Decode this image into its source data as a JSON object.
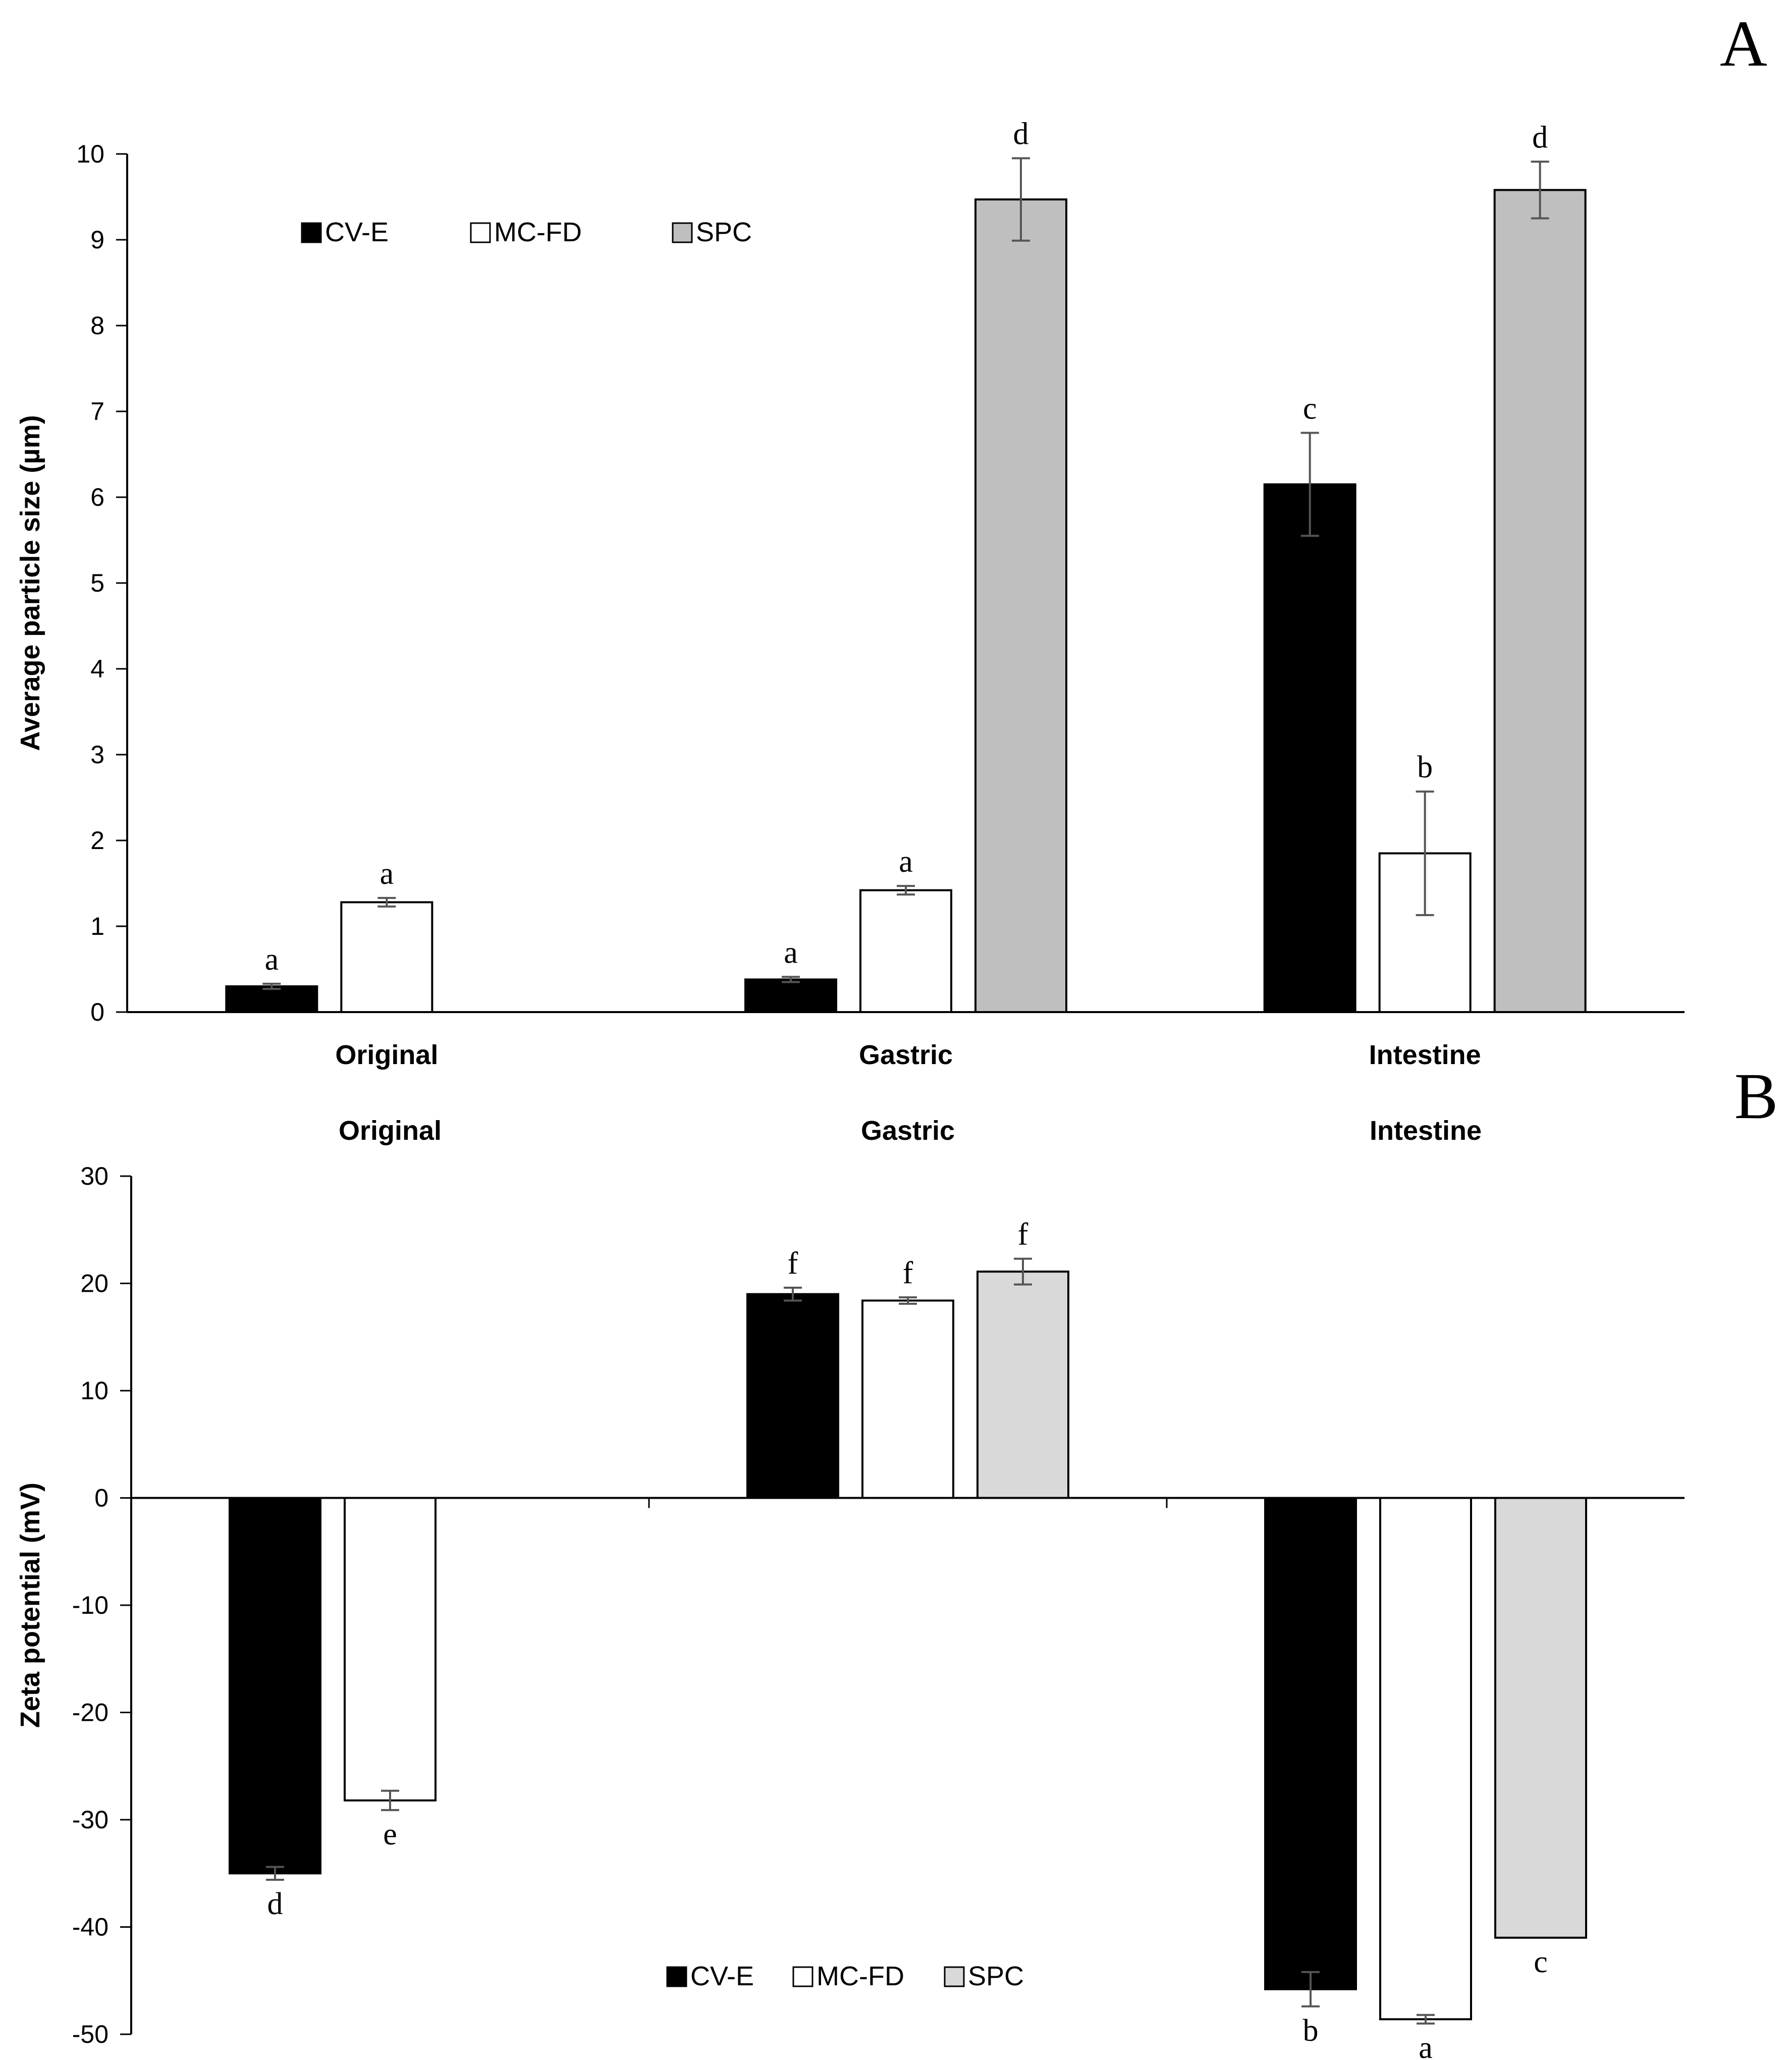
{
  "chart_data": [
    {
      "type": "bar",
      "panel_label": "A",
      "title": "",
      "xlabel": "",
      "ylabel": "Average particle size (µm)",
      "ylim": [
        0,
        10
      ],
      "yticks": [
        0,
        1,
        2,
        3,
        4,
        5,
        6,
        7,
        8,
        9,
        10
      ],
      "categories": [
        "Original",
        "Gastric",
        "Intestine"
      ],
      "legend_position": "top-left",
      "series": [
        {
          "name": "CV-E",
          "color": "#000000",
          "values": [
            0.3,
            0.38,
            6.15
          ],
          "errors": [
            0.03,
            0.03,
            0.6
          ],
          "letters": [
            "a",
            "a",
            "c"
          ]
        },
        {
          "name": "MC-FD",
          "color": "#ffffff",
          "values": [
            1.28,
            1.42,
            1.85
          ],
          "errors": [
            0.05,
            0.05,
            0.72
          ],
          "letters": [
            "a",
            "a",
            "b"
          ]
        },
        {
          "name": "SPC",
          "color": "#bfbfbf",
          "values": [
            null,
            9.47,
            9.58
          ],
          "errors": [
            null,
            0.48,
            0.33
          ],
          "letters": [
            "",
            "d",
            "d"
          ]
        }
      ]
    },
    {
      "type": "bar",
      "panel_label": "B",
      "title": "",
      "xlabel": "",
      "ylabel": "Zeta potential (mV)",
      "ylim": [
        -50,
        30
      ],
      "yticks": [
        30,
        20,
        10,
        0,
        -10,
        -20,
        -30,
        -40,
        -50
      ],
      "categories": [
        "Original",
        "Gastric",
        "Intestine"
      ],
      "legend_position": "bottom-center",
      "series": [
        {
          "name": "CV-E",
          "color": "#000000",
          "values": [
            -35.0,
            19.0,
            -45.8
          ],
          "errors": [
            0.6,
            0.6,
            1.6
          ],
          "letters": [
            "d",
            "f",
            "b"
          ]
        },
        {
          "name": "MC-FD",
          "color": "#ffffff",
          "values": [
            -28.2,
            18.4,
            -48.6
          ],
          "errors": [
            0.9,
            0.3,
            0.4
          ],
          "letters": [
            "e",
            "f",
            "a"
          ]
        },
        {
          "name": "SPC",
          "color": "#d9d9d9",
          "values": [
            null,
            21.1,
            -41.0
          ],
          "errors": [
            null,
            1.2,
            null
          ],
          "letters": [
            "",
            "f",
            "c"
          ]
        }
      ]
    }
  ]
}
